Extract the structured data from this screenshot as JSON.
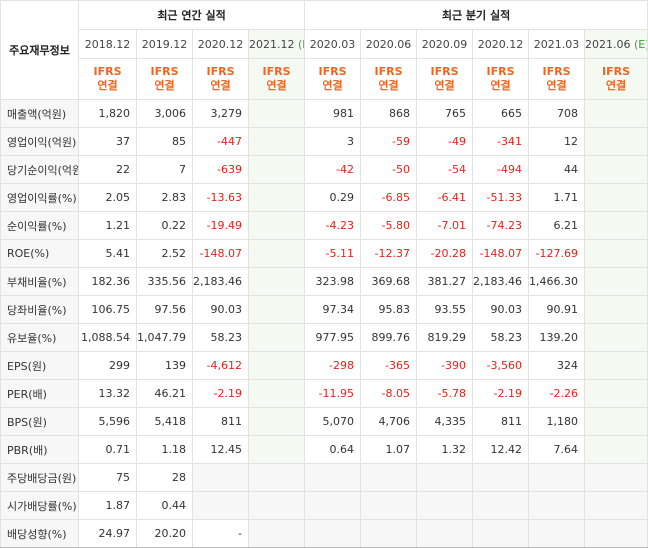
{
  "header": {
    "side_label": "주요재무정보",
    "annual_title": "최근 연간 실적",
    "quarter_title": "최근 분기 실적",
    "annual_periods": [
      "2018.12",
      "2019.12",
      "2020.12",
      "2021.12"
    ],
    "annual_estimate_suffix": "(E)",
    "quarter_periods": [
      "2020.03",
      "2020.06",
      "2020.09",
      "2020.12",
      "2021.03",
      "2021.06"
    ],
    "quarter_estimate_suffix": "(E)",
    "basis_line1": "IFRS",
    "basis_line2": "연결"
  },
  "rows": [
    {
      "label": "매출액(억원)",
      "annual": [
        "1,820",
        "3,006",
        "3,279",
        ""
      ],
      "quarter": [
        "981",
        "868",
        "765",
        "665",
        "708",
        ""
      ]
    },
    {
      "label": "영업이익(억원)",
      "annual": [
        "37",
        "85",
        "-447",
        ""
      ],
      "quarter": [
        "3",
        "-59",
        "-49",
        "-341",
        "12",
        ""
      ]
    },
    {
      "label": "당기순이익(억원)",
      "annual": [
        "22",
        "7",
        "-639",
        ""
      ],
      "quarter": [
        "-42",
        "-50",
        "-54",
        "-494",
        "44",
        ""
      ]
    },
    {
      "label": "영업이익률(%)",
      "annual": [
        "2.05",
        "2.83",
        "-13.63",
        ""
      ],
      "quarter": [
        "0.29",
        "-6.85",
        "-6.41",
        "-51.33",
        "1.71",
        ""
      ]
    },
    {
      "label": "순이익률(%)",
      "annual": [
        "1.21",
        "0.22",
        "-19.49",
        ""
      ],
      "quarter": [
        "-4.23",
        "-5.80",
        "-7.01",
        "-74.23",
        "6.21",
        ""
      ]
    },
    {
      "label": "ROE(%)",
      "annual": [
        "5.41",
        "2.52",
        "-148.07",
        ""
      ],
      "quarter": [
        "-5.11",
        "-12.37",
        "-20.28",
        "-148.07",
        "-127.69",
        ""
      ]
    },
    {
      "label": "부채비율(%)",
      "annual": [
        "182.36",
        "335.56",
        "2,183.46",
        ""
      ],
      "quarter": [
        "323.98",
        "369.68",
        "381.27",
        "2,183.46",
        "1,466.30",
        ""
      ]
    },
    {
      "label": "당좌비율(%)",
      "annual": [
        "106.75",
        "97.56",
        "90.03",
        ""
      ],
      "quarter": [
        "97.34",
        "95.83",
        "93.55",
        "90.03",
        "90.91",
        ""
      ]
    },
    {
      "label": "유보율(%)",
      "annual": [
        "1,088.54",
        "1,047.79",
        "58.23",
        ""
      ],
      "quarter": [
        "977.95",
        "899.76",
        "819.29",
        "58.23",
        "139.20",
        ""
      ]
    },
    {
      "label": "EPS(원)",
      "annual": [
        "299",
        "139",
        "-4,612",
        ""
      ],
      "quarter": [
        "-298",
        "-365",
        "-390",
        "-3,560",
        "324",
        ""
      ]
    },
    {
      "label": "PER(배)",
      "annual": [
        "13.32",
        "46.21",
        "-2.19",
        ""
      ],
      "quarter": [
        "-11.95",
        "-8.05",
        "-5.78",
        "-2.19",
        "-2.26",
        ""
      ]
    },
    {
      "label": "BPS(원)",
      "annual": [
        "5,596",
        "5,418",
        "811",
        ""
      ],
      "quarter": [
        "5,070",
        "4,706",
        "4,335",
        "811",
        "1,180",
        ""
      ]
    },
    {
      "label": "PBR(배)",
      "annual": [
        "0.71",
        "1.18",
        "12.45",
        ""
      ],
      "quarter": [
        "0.64",
        "1.07",
        "1.32",
        "12.42",
        "7.64",
        ""
      ]
    },
    {
      "label": "주당배당금(원)",
      "annual": [
        "75",
        "28",
        "",
        ""
      ],
      "quarter": [
        "",
        "",
        "",
        "",
        "",
        ""
      ]
    },
    {
      "label": "시가배당률(%)",
      "annual": [
        "1.87",
        "0.44",
        "",
        ""
      ],
      "quarter": [
        "",
        "",
        "",
        "",
        "",
        ""
      ]
    },
    {
      "label": "배당성향(%)",
      "annual": [
        "24.97",
        "20.20",
        "-",
        ""
      ],
      "quarter": [
        "",
        "",
        "",
        "",
        "",
        ""
      ]
    }
  ],
  "colors": {
    "negative": "#e2231a",
    "basis": "#f26522",
    "estimate": "#3d9a3d"
  }
}
